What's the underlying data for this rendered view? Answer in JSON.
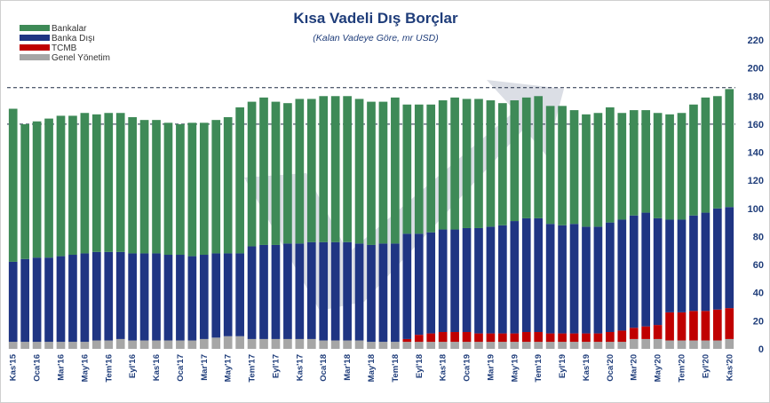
{
  "chart_data": {
    "type": "bar",
    "stacked": true,
    "title": "Kısa Vadeli Dış Borçlar",
    "subtitle": "(Kalan Vadeye Göre, mr USD)",
    "ylim": [
      0,
      220
    ],
    "yticks": [
      0,
      20,
      40,
      60,
      80,
      100,
      120,
      140,
      160,
      180,
      200,
      220
    ],
    "y_axis_position": "right",
    "legend_position": "top-left",
    "reference_lines": [
      186,
      160
    ],
    "categories": [
      "Kas'15",
      "Ara'15",
      "Oca'16",
      "Şub'16",
      "Mar'16",
      "Nis'16",
      "May'16",
      "Haz'16",
      "Tem'16",
      "Ağu'16",
      "Eyl'16",
      "Eki'16",
      "Kas'16",
      "Ara'16",
      "Oca'17",
      "Şub'17",
      "Mar'17",
      "Nis'17",
      "May'17",
      "Haz'17",
      "Tem'17",
      "Ağu'17",
      "Eyl'17",
      "Eki'17",
      "Kas'17",
      "Ara'17",
      "Oca'18",
      "Şub'18",
      "Mar'18",
      "Nis'18",
      "May'18",
      "Haz'18",
      "Tem'18",
      "Ağu'18",
      "Eyl'18",
      "Eki'18",
      "Kas'18",
      "Ara'18",
      "Oca'19",
      "Şub'19",
      "Mar'19",
      "Nis'19",
      "May'19",
      "Haz'19",
      "Tem'19",
      "Ağu'19",
      "Eyl'19",
      "Eki'19",
      "Kas'19",
      "Ara'19",
      "Oca'20",
      "Şub'20",
      "Mar'20",
      "Nis'20",
      "May'20",
      "Haz'20",
      "Tem'20",
      "Ağu'20",
      "Eyl'20",
      "Eki'20",
      "Kas'20"
    ],
    "visible_tick_labels": [
      "Kas'15",
      "Oca'16",
      "Mar'16",
      "May'16",
      "Tem'16",
      "Eyl'16",
      "Kas'16",
      "Oca'17",
      "Mar'17",
      "May'17",
      "Tem'17",
      "Eyl'17",
      "Kas'17",
      "Oca'18",
      "Mar'18",
      "May'18",
      "Tem'18",
      "Eyl'18",
      "Kas'18",
      "Oca'19",
      "Mar'19",
      "May'19",
      "Tem'19",
      "Eyl'19",
      "Kas'19",
      "Oca'20",
      "Mar'20",
      "May'20",
      "Tem'20",
      "Eyl'20",
      "Kas'20"
    ],
    "series": [
      {
        "name": "Genel Yönetim",
        "color": "#a6a6a6",
        "values": [
          5,
          5,
          5,
          5,
          5,
          5,
          5,
          6,
          6,
          7,
          6,
          6,
          6,
          6,
          6,
          6,
          7,
          8,
          9,
          9,
          7,
          7,
          7,
          7,
          7,
          7,
          6,
          6,
          6,
          6,
          5,
          5,
          5,
          5,
          5,
          5,
          5,
          5,
          5,
          5,
          5,
          5,
          5,
          5,
          5,
          5,
          5,
          5,
          5,
          5,
          5,
          5,
          7,
          7,
          7,
          6,
          6,
          6,
          6,
          6,
          7
        ]
      },
      {
        "name": "TCMB",
        "color": "#c00000",
        "values": [
          0,
          0,
          0,
          0,
          0,
          0,
          0,
          0,
          0,
          0,
          0,
          0,
          0,
          0,
          0,
          0,
          0,
          0,
          0,
          0,
          0,
          0,
          0,
          0,
          0,
          0,
          0,
          0,
          0,
          0,
          0,
          0,
          0,
          2,
          5,
          6,
          7,
          7,
          7,
          6,
          6,
          6,
          6,
          7,
          7,
          6,
          6,
          6,
          6,
          6,
          7,
          8,
          8,
          9,
          10,
          20,
          20,
          21,
          21,
          22,
          22
        ]
      },
      {
        "name": "Banka Dışı",
        "color": "#1f3583",
        "values": [
          57,
          59,
          60,
          60,
          61,
          62,
          63,
          63,
          63,
          62,
          62,
          62,
          62,
          61,
          61,
          60,
          60,
          60,
          59,
          59,
          66,
          67,
          67,
          68,
          68,
          69,
          70,
          70,
          70,
          69,
          69,
          70,
          70,
          75,
          72,
          72,
          73,
          73,
          74,
          75,
          76,
          77,
          80,
          81,
          81,
          78,
          77,
          78,
          76,
          76,
          78,
          79,
          80,
          81,
          76,
          66,
          66,
          68,
          70,
          72,
          72
        ]
      },
      {
        "name": "Bankalar",
        "color": "#3e8a57",
        "values": [
          109,
          96,
          97,
          99,
          100,
          99,
          100,
          98,
          99,
          99,
          97,
          95,
          95,
          94,
          93,
          95,
          94,
          95,
          97,
          104,
          103,
          105,
          102,
          100,
          103,
          102,
          104,
          104,
          104,
          103,
          102,
          101,
          104,
          92,
          92,
          91,
          92,
          94,
          92,
          92,
          90,
          87,
          86,
          86,
          87,
          84,
          85,
          81,
          80,
          81,
          82,
          76,
          75,
          73,
          75,
          75,
          76,
          79,
          82,
          80,
          84
        ]
      }
    ]
  }
}
